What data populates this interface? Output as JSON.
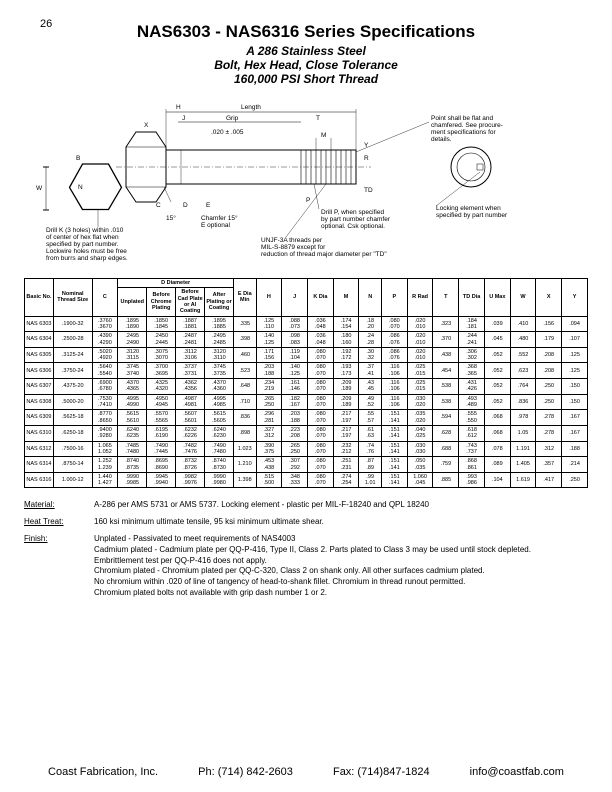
{
  "page_number": "26",
  "title": "NAS6303 - NAS6316 Series Specifications",
  "subtitle": "A 286 Stainless Steel",
  "sub2": "Bolt, Hex Head, Close Tolerance",
  "sub3": "160,000 PSI Short Thread",
  "diagram": {
    "labels": [
      "H",
      "Length",
      "J",
      "Grip",
      "T",
      ".020 ± .005",
      "M",
      "Y",
      "R",
      "W",
      "B",
      "N",
      "X",
      "D",
      "C",
      "E",
      "P",
      "TD"
    ],
    "note_point": "Point shall be flat and chamfered. See procurement specifications for details.",
    "note_lock": "Locking element when specified by part number",
    "note_drillp": "Drill P, when specified by part number chamfer optional. Csk optional.",
    "note_unjf": "UNJF-3A threads per MIL-S-8879 except for reduction of thread major diameter per \"TD\"",
    "note_chamfer": "Chamfer 15° E optional",
    "note_drillk": "Drill K (3 holes) within .010 of center of hex flat when specified by part number. Lockwire holes must be free from burrs and sharp edges.",
    "angle": "15°"
  },
  "columns": [
    "Basic No.",
    "Nominal Thread Size",
    "C",
    "Unplated",
    "Before Chrome Plating",
    "Before Cad Plate or Al Coating",
    "After Plating or Coating",
    "E Dia Min",
    "H",
    "J",
    "K Dia",
    "M",
    "N",
    "P",
    "R Rad",
    "T",
    "TD Dia",
    "U Max",
    "W",
    "X",
    "Y"
  ],
  "rows": [
    {
      "no": "NAS 6303",
      "size": ".1900-32",
      "c": [
        ".3760",
        ".3670"
      ],
      "d1": [
        ".1895",
        ".1890"
      ],
      "d2": [
        ".1850",
        ".1845"
      ],
      "d3": [
        ".1887",
        ".1881"
      ],
      "d4": [
        ".1895",
        ".1885"
      ],
      "e": ".335",
      "h": [
        ".125",
        ".110"
      ],
      "j": [
        ".088",
        ".073"
      ],
      "k": [
        ".036",
        ".048"
      ],
      "m": [
        ".174",
        ".154"
      ],
      "n": [
        ".18",
        ".20"
      ],
      "p": [
        ".080",
        ".070"
      ],
      "r": [
        ".020",
        ".010"
      ],
      "t": ".323",
      "td": [
        ".184",
        ".181"
      ],
      "u": ".039",
      "w": ".410",
      "x": ".156",
      "y": ".094"
    },
    {
      "no": "NAS 6304",
      "size": ".2500-28",
      "c": [
        ".4390",
        ".4290"
      ],
      "d1": [
        ".2495",
        ".2490"
      ],
      "d2": [
        ".2450",
        ".2445"
      ],
      "d3": [
        ".2487",
        ".2481"
      ],
      "d4": [
        ".2495",
        ".2485"
      ],
      "e": ".398",
      "h": [
        ".140",
        ".125"
      ],
      "j": [
        ".098",
        ".083"
      ],
      "k": [
        ".036",
        ".048"
      ],
      "m": [
        ".180",
        ".160"
      ],
      "n": [
        ".24",
        ".28"
      ],
      "p": [
        ".086",
        ".076"
      ],
      "r": [
        ".020",
        ".010"
      ],
      "t": ".370",
      "td": [
        ".244",
        ".241"
      ],
      "u": ".045",
      "w": ".480",
      "x": ".179",
      "y": ".107"
    },
    {
      "no": "NAS 6305",
      "size": ".3125-24",
      "c": [
        ".5020",
        ".4920"
      ],
      "d1": [
        ".3120",
        ".3115"
      ],
      "d2": [
        ".3075",
        ".3070"
      ],
      "d3": [
        ".3112",
        ".3106"
      ],
      "d4": [
        ".3120",
        ".3110"
      ],
      "e": ".460",
      "h": [
        ".171",
        ".156"
      ],
      "j": [
        ".119",
        ".104"
      ],
      "k": [
        ".080",
        ".070"
      ],
      "m": [
        ".192",
        ".172"
      ],
      "n": [
        ".30",
        ".32"
      ],
      "p": [
        ".086",
        ".076"
      ],
      "r": [
        ".020",
        ".010"
      ],
      "t": ".438",
      "td": [
        ".306",
        ".302"
      ],
      "u": ".052",
      "w": ".552",
      "x": ".208",
      "y": ".125"
    },
    {
      "no": "NAS 6306",
      "size": ".3750-24",
      "c": [
        ".5640",
        ".5540"
      ],
      "d1": [
        ".3745",
        ".3740"
      ],
      "d2": [
        ".3700",
        ".3695"
      ],
      "d3": [
        ".3737",
        ".3731"
      ],
      "d4": [
        ".3745",
        ".3735"
      ],
      "e": ".523",
      "h": [
        ".203",
        ".188"
      ],
      "j": [
        ".140",
        ".125"
      ],
      "k": [
        ".080",
        ".070"
      ],
      "m": [
        ".193",
        ".173"
      ],
      "n": [
        ".37",
        ".41"
      ],
      "p": [
        ".116",
        ".106"
      ],
      "r": [
        ".025",
        ".015"
      ],
      "t": ".454",
      "td": [
        ".368",
        ".365"
      ],
      "u": ".052",
      "w": ".623",
      "x": ".208",
      "y": ".125"
    },
    {
      "no": "NAS 6307",
      "size": ".4375-20",
      "c": [
        ".6900",
        ".6780"
      ],
      "d1": [
        ".4370",
        ".4365"
      ],
      "d2": [
        ".4325",
        ".4320"
      ],
      "d3": [
        ".4362",
        ".4356"
      ],
      "d4": [
        ".4370",
        ".4360"
      ],
      "e": ".648",
      "h": [
        ".234",
        ".219"
      ],
      "j": [
        ".161",
        ".146"
      ],
      "k": [
        ".080",
        ".070"
      ],
      "m": [
        ".209",
        ".189"
      ],
      "n": [
        ".43",
        ".45"
      ],
      "p": [
        ".116",
        ".106"
      ],
      "r": [
        ".025",
        ".015"
      ],
      "t": ".538",
      "td": [
        ".431",
        ".426"
      ],
      "u": ".052",
      "w": ".764",
      "x": ".250",
      "y": ".150"
    },
    {
      "no": "NAS 6308",
      "size": ".5000-20",
      "c": [
        ".7530",
        ".7410"
      ],
      "d1": [
        ".4995",
        ".4990"
      ],
      "d2": [
        ".4950",
        ".4945"
      ],
      "d3": [
        ".4987",
        ".4981"
      ],
      "d4": [
        ".4995",
        ".4985"
      ],
      "e": ".710",
      "h": [
        ".265",
        ".250"
      ],
      "j": [
        ".182",
        ".167"
      ],
      "k": [
        ".080",
        ".070"
      ],
      "m": [
        ".209",
        ".189"
      ],
      "n": [
        ".49",
        ".52"
      ],
      "p": [
        ".116",
        ".106"
      ],
      "r": [
        ".030",
        ".020"
      ],
      "t": ".538",
      "td": [
        ".493",
        ".489"
      ],
      "u": ".052",
      "w": ".836",
      "x": ".250",
      "y": ".150"
    },
    {
      "no": "NAS 6309",
      "size": ".5625-18",
      "c": [
        ".8770",
        ".8650"
      ],
      "d1": [
        ".5615",
        ".5610"
      ],
      "d2": [
        ".5570",
        ".5565"
      ],
      "d3": [
        ".5607",
        ".5601"
      ],
      "d4": [
        ".5615",
        ".5605"
      ],
      "e": ".836",
      "h": [
        ".296",
        ".281"
      ],
      "j": [
        ".203",
        ".188"
      ],
      "k": [
        ".080",
        ".070"
      ],
      "m": [
        ".217",
        ".197"
      ],
      "n": [
        ".55",
        ".57"
      ],
      "p": [
        ".151",
        ".141"
      ],
      "r": [
        ".035",
        ".020"
      ],
      "t": ".594",
      "td": [
        ".555",
        ".550"
      ],
      "u": ".068",
      "w": ".978",
      "x": ".278",
      "y": ".167"
    },
    {
      "no": "NAS 6310",
      "size": ".6250-18",
      "c": [
        ".9400",
        ".9280"
      ],
      "d1": [
        ".6240",
        ".6235"
      ],
      "d2": [
        ".6195",
        ".6190"
      ],
      "d3": [
        ".6232",
        ".6226"
      ],
      "d4": [
        ".6240",
        ".6230"
      ],
      "e": ".898",
      "h": [
        ".327",
        ".312"
      ],
      "j": [
        ".223",
        ".208"
      ],
      "k": [
        ".080",
        ".070"
      ],
      "m": [
        ".217",
        ".197"
      ],
      "n": [
        ".61",
        ".63"
      ],
      "p": [
        ".151",
        ".141"
      ],
      "r": [
        ".040",
        ".025"
      ],
      "t": ".628",
      "td": [
        ".618",
        ".612"
      ],
      "u": ".068",
      "w": "1.05",
      "x": ".278",
      "y": ".167"
    },
    {
      "no": "NAS 6312",
      "size": ".7500-16",
      "c": [
        "1.065",
        "1.052"
      ],
      "d1": [
        ".7485",
        ".7480"
      ],
      "d2": [
        ".7490",
        ".7445"
      ],
      "d3": [
        ".7482",
        ".7476"
      ],
      "d4": [
        ".7490",
        ".7480"
      ],
      "e": "1.023",
      "h": [
        ".390",
        ".375"
      ],
      "j": [
        ".265",
        ".250"
      ],
      "k": [
        ".080",
        ".070"
      ],
      "m": [
        ".232",
        ".212"
      ],
      "n": [
        ".74",
        ".76"
      ],
      "p": [
        ".151",
        ".141"
      ],
      "r": [
        ".030",
        ".030"
      ],
      "t": ".688",
      "td": [
        ".743",
        ".737"
      ],
      "u": ".078",
      "w": "1.191",
      "x": ".312",
      "y": ".188"
    },
    {
      "no": "NAS 6314",
      "size": ".8750-14",
      "c": [
        "1.252",
        "1.239"
      ],
      "d1": [
        ".8740",
        ".8735"
      ],
      "d2": [
        ".8695",
        ".8690"
      ],
      "d3": [
        ".8732",
        ".8726"
      ],
      "d4": [
        ".8740",
        ".8730"
      ],
      "e": "1.210",
      "h": [
        ".453",
        ".438"
      ],
      "j": [
        ".307",
        ".292"
      ],
      "k": [
        ".080",
        ".070"
      ],
      "m": [
        ".251",
        ".231"
      ],
      "n": [
        ".87",
        ".89"
      ],
      "p": [
        ".151",
        ".141"
      ],
      "r": [
        ".050",
        ".035"
      ],
      "t": ".759",
      "td": [
        ".868",
        ".861"
      ],
      "u": ".089",
      "w": "1.405",
      "x": ".357",
      "y": ".214"
    },
    {
      "no": "NAS 6316",
      "size": "1.000-12",
      "c": [
        "1.440",
        "1.427"
      ],
      "d1": [
        ".9990",
        ".9985"
      ],
      "d2": [
        ".9945",
        ".9940"
      ],
      "d3": [
        ".9982",
        ".9976"
      ],
      "d4": [
        ".9990",
        ".9980"
      ],
      "e": "1.398",
      "h": [
        ".515",
        ".500"
      ],
      "j": [
        ".348",
        ".333"
      ],
      "k": [
        ".080",
        ".070"
      ],
      "m": [
        ".274",
        ".254"
      ],
      "n": [
        ".99",
        "1.01"
      ],
      "p": [
        ".151",
        ".141"
      ],
      "r": [
        "1.060",
        ".045"
      ],
      "t": ".885",
      "td": [
        ".993",
        ".986"
      ],
      "u": ".104",
      "w": "1.619",
      "x": ".417",
      "y": ".250"
    }
  ],
  "notes": {
    "material_label": "Material:",
    "material": "A-286 per AMS 5731 or AMS 5737. Locking element - plastic per MIL-F-18240 and QPL 18240",
    "heat_label": "Heat Treat:",
    "heat": "160 ksi minimum ultimate tensile, 95 ksi minimum ultimate shear.",
    "finish_label": "Finish:",
    "finish1": "Unplated - Passivated to meet requirements of NAS4003",
    "finish2": "Cadmium plated - Cadmium plate per QQ-P-416, Type II, Class 2. Parts plated to Class 3 may be used until stock depleted.",
    "finish3": "Embrittlement test per QQ-P-416 does not apply.",
    "finish4": "Chromium plated - Chromium plated per QQ-C-320, Class 2 on shank only. All other surfaces cadmium plated.",
    "finish5": "No chromium within .020 of line of tangency of head-to-shank fillet. Chromium in thread runout permitted.",
    "finish6": "Chromium plated bolts not available with grip dash number 1 or 2."
  },
  "footer": {
    "company": "Coast Fabrication, Inc.",
    "phone": "Ph: (714) 842-2603",
    "fax": "Fax: (714)847-1824",
    "email": "info@coastfab.com"
  }
}
